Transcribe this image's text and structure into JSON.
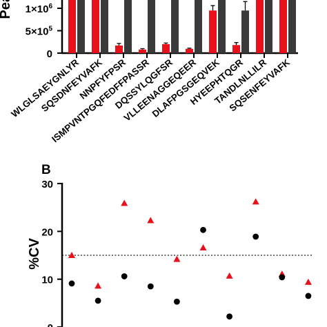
{
  "chart_data": [
    {
      "panel": "",
      "type": "bar",
      "ylabel": "Pea",
      "ytick_labels": [
        {
          "value": 0,
          "base": "0",
          "exp": ""
        },
        {
          "value": 500000,
          "base": "5×10",
          "exp": "5"
        },
        {
          "value": 1000000,
          "base": "1×10",
          "exp": "6"
        }
      ],
      "ylim_visible": [
        0,
        1150000
      ],
      "categories": [
        "WLGLSAEYGNLYR",
        "SQSDNFEYVAFK",
        "NNPFYFPSR",
        "ISMPVNTPGQFEDFFPASSR",
        "DQSSYLQGFSR",
        "VLLEENAGGEQEER",
        "DLAFPGSGEQVEK",
        "HYEEPHTQGR",
        "TANDLNLLILR",
        "SQSENFEYVAFK"
      ],
      "series": [
        {
          "color": "#e8101a",
          "values": [
            1400000,
            1400000,
            170000,
            80000,
            200000,
            95000,
            950000,
            180000,
            1400000,
            1400000
          ],
          "errors": [
            0,
            0,
            45000,
            20000,
            25000,
            15000,
            110000,
            55000,
            0,
            0
          ]
        },
        {
          "color": "#3a3a3a",
          "values": [
            1400000,
            1400000,
            1400000,
            1400000,
            1400000,
            1400000,
            1400000,
            950000,
            1400000,
            1400000
          ],
          "errors": [
            0,
            0,
            0,
            0,
            0,
            0,
            0,
            200000,
            0,
            0
          ]
        }
      ]
    },
    {
      "panel": "B",
      "type": "scatter",
      "ylabel": "%CV",
      "ylim": [
        0,
        30
      ],
      "yticks": [
        0,
        10,
        20,
        30
      ],
      "reference_line": 15,
      "categories_count": 10,
      "series": [
        {
          "marker": "triangle",
          "color": "#e8101a",
          "values": [
            15,
            8.6,
            25.9,
            22.3,
            14.2,
            16.6,
            10.7,
            26.2,
            11.1,
            9.4
          ]
        },
        {
          "marker": "circle",
          "color": "#000000",
          "values": [
            9.1,
            5.5,
            10.6,
            8.5,
            5.3,
            20.3,
            2.2,
            18.9,
            10.4,
            6.5
          ]
        }
      ]
    }
  ]
}
